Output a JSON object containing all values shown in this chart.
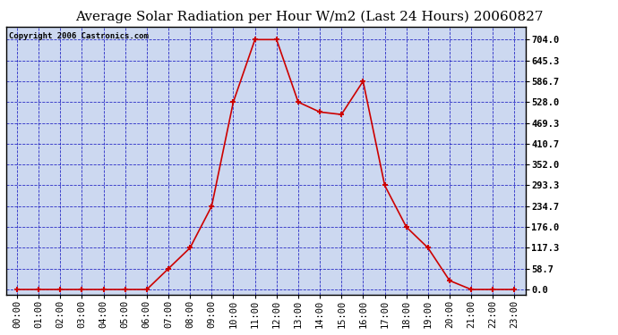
{
  "title": "Average Solar Radiation per Hour W/m2 (Last 24 Hours) 20060827",
  "copyright": "Copyright 2006 Castronics.com",
  "hours": [
    "00:00",
    "01:00",
    "02:00",
    "03:00",
    "04:00",
    "05:00",
    "06:00",
    "07:00",
    "08:00",
    "09:00",
    "10:00",
    "11:00",
    "12:00",
    "13:00",
    "14:00",
    "15:00",
    "16:00",
    "17:00",
    "18:00",
    "19:00",
    "20:00",
    "21:00",
    "22:00",
    "23:00"
  ],
  "values": [
    0.0,
    0.0,
    0.0,
    0.0,
    0.0,
    0.0,
    0.0,
    58.7,
    117.3,
    234.7,
    528.0,
    704.0,
    704.0,
    528.0,
    500.0,
    493.0,
    586.7,
    293.3,
    176.0,
    117.3,
    25.0,
    0.0,
    0.0,
    0.0
  ],
  "line_color": "#cc0000",
  "marker_color": "#cc0000",
  "bg_color": "#ccd8f0",
  "grid_color": "#0000bb",
  "border_color": "#000000",
  "title_color": "#000000",
  "yticks": [
    0.0,
    58.7,
    117.3,
    176.0,
    234.7,
    293.3,
    352.0,
    410.7,
    469.3,
    528.0,
    586.7,
    645.3,
    704.0
  ],
  "ylim": [
    -15,
    740
  ],
  "title_fontsize": 11,
  "copyright_fontsize": 6.5,
  "tick_fontsize": 7.5
}
